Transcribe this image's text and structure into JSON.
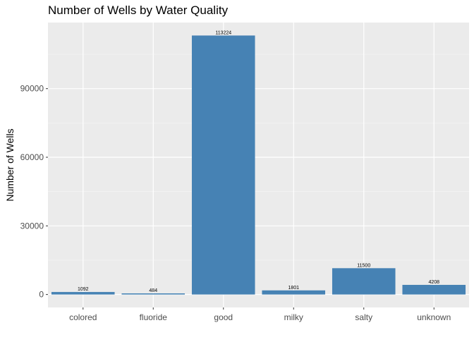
{
  "chart_data": {
    "type": "bar",
    "title": "Number of Wells by Water Quality",
    "xlabel": "",
    "ylabel": "Number of Wells",
    "categories": [
      "colored",
      "fluoride",
      "good",
      "milky",
      "salty",
      "unknown"
    ],
    "values": [
      1092,
      484,
      113224,
      1801,
      11500,
      4208
    ],
    "data_labels": [
      "1092",
      "484",
      "113224",
      "1801",
      "11500",
      "4208"
    ],
    "yticks": [
      0,
      30000,
      60000,
      90000
    ],
    "ytick_labels": [
      "0",
      "30000",
      "60000",
      "90000"
    ],
    "ylim": [
      -5661.2,
      118885.2
    ],
    "grid": true,
    "legend": "none",
    "colors": {
      "bar": "#4682B4",
      "panel": "#EBEBEB",
      "grid_major": "#FFFFFF",
      "grid_minor": "#F5F5F5",
      "text": "#4D4D4D",
      "data_label": "#000000"
    }
  }
}
